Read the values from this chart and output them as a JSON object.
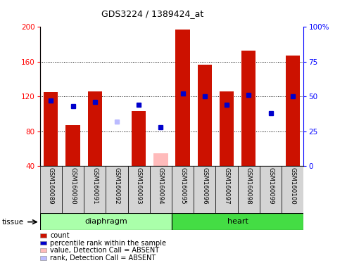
{
  "title": "GDS3224 / 1389424_at",
  "samples": [
    "GSM160089",
    "GSM160090",
    "GSM160091",
    "GSM160092",
    "GSM160093",
    "GSM160094",
    "GSM160095",
    "GSM160096",
    "GSM160097",
    "GSM160098",
    "GSM160099",
    "GSM160100"
  ],
  "count_values": [
    125,
    87,
    126,
    38,
    103,
    55,
    197,
    157,
    126,
    173,
    0,
    167
  ],
  "rank_values": [
    47,
    43,
    46,
    null,
    44,
    28,
    52,
    50,
    44,
    51,
    38,
    50
  ],
  "absent_count": [
    null,
    null,
    null,
    38,
    null,
    55,
    null,
    null,
    null,
    null,
    null,
    null
  ],
  "absent_rank": [
    null,
    null,
    null,
    32,
    null,
    null,
    null,
    null,
    null,
    null,
    null,
    null
  ],
  "tissue_groups": [
    {
      "label": "diaphragm",
      "start": 0,
      "end": 5,
      "color": "#aaffaa"
    },
    {
      "label": "heart",
      "start": 6,
      "end": 11,
      "color": "#44dd44"
    }
  ],
  "ylim_left": [
    40,
    200
  ],
  "ylim_right": [
    0,
    100
  ],
  "yticks_left": [
    40,
    80,
    120,
    160,
    200
  ],
  "yticks_right": [
    0,
    25,
    50,
    75,
    100
  ],
  "bar_color": "#cc1100",
  "rank_color": "#0000cc",
  "absent_count_color": "#ffbbbb",
  "absent_rank_color": "#bbbbff",
  "legend": [
    {
      "label": "count",
      "color": "#cc1100"
    },
    {
      "label": "percentile rank within the sample",
      "color": "#0000cc"
    },
    {
      "label": "value, Detection Call = ABSENT",
      "color": "#ffbbbb"
    },
    {
      "label": "rank, Detection Call = ABSENT",
      "color": "#bbbbff"
    }
  ]
}
